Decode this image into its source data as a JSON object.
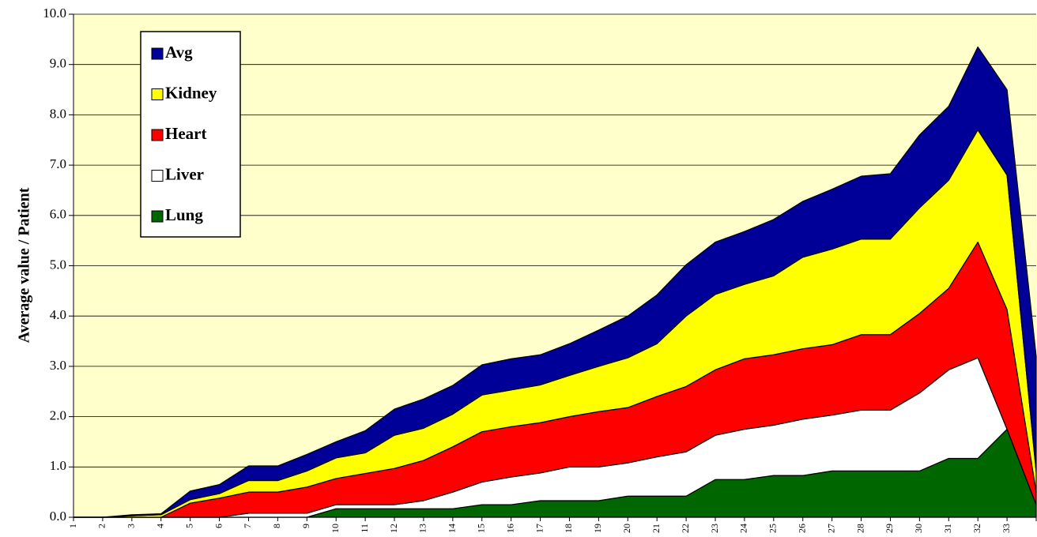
{
  "chart_data": {
    "type": "stacked-area",
    "y_label": "Average value / Patient",
    "categories": [
      "1",
      "2",
      "3",
      "4",
      "5",
      "6",
      "7",
      "8",
      "9",
      "10",
      "11",
      "12",
      "13",
      "14",
      "15",
      "16",
      "17",
      "18",
      "19",
      "20",
      "21",
      "22",
      "23",
      "24",
      "25",
      "26",
      "27",
      "28",
      "29",
      "30",
      "31",
      "32",
      "33",
      null
    ],
    "series": [
      {
        "name": "Lung",
        "color": "#006600",
        "values": [
          0,
          0,
          0,
          0,
          0,
          0,
          0,
          0,
          0,
          0.17,
          0.17,
          0.17,
          0.17,
          0.17,
          0.25,
          0.25,
          0.33,
          0.33,
          0.33,
          0.42,
          0.42,
          0.42,
          0.75,
          0.75,
          0.83,
          0.83,
          0.92,
          0.92,
          0.92,
          0.92,
          1.17,
          1.17,
          1.75,
          0.25
        ]
      },
      {
        "name": "Liver",
        "color": "#ffffff",
        "values": [
          0,
          0,
          0,
          0,
          0,
          0,
          0.08,
          0.08,
          0.08,
          0.08,
          0.08,
          0.08,
          0.16,
          0.33,
          0.45,
          0.55,
          0.55,
          0.67,
          0.67,
          0.66,
          0.78,
          0.88,
          0.88,
          1.0,
          1.0,
          1.12,
          1.11,
          1.21,
          1.21,
          1.55,
          1.76,
          2.0,
          0,
          0
        ]
      },
      {
        "name": "Heart",
        "color": "#ff0000",
        "values": [
          0,
          0,
          0,
          0,
          0.28,
          0.38,
          0.42,
          0.42,
          0.52,
          0.52,
          0.62,
          0.72,
          0.8,
          0.9,
          1.0,
          1.0,
          1.0,
          1.0,
          1.1,
          1.1,
          1.2,
          1.3,
          1.3,
          1.4,
          1.4,
          1.4,
          1.4,
          1.5,
          1.5,
          1.58,
          1.62,
          2.3,
          2.38,
          0.25
        ]
      },
      {
        "name": "Kidney",
        "color": "#ffff00",
        "values": [
          0,
          0,
          0.03,
          0.05,
          0.07,
          0.09,
          0.23,
          0.23,
          0.32,
          0.41,
          0.41,
          0.66,
          0.64,
          0.65,
          0.73,
          0.73,
          0.75,
          0.82,
          0.9,
          0.99,
          1.05,
          1.4,
          1.5,
          1.48,
          1.57,
          1.82,
          1.9,
          1.9,
          1.9,
          2.1,
          2.15,
          2.23,
          2.67,
          0.4
        ]
      },
      {
        "name": "Avg",
        "color": "#000099",
        "values": [
          0,
          0,
          0.02,
          0.02,
          0.17,
          0.18,
          0.29,
          0.29,
          0.33,
          0.32,
          0.44,
          0.52,
          0.58,
          0.57,
          0.6,
          0.62,
          0.6,
          0.63,
          0.72,
          0.83,
          0.97,
          1.02,
          1.04,
          1.05,
          1.12,
          1.11,
          1.19,
          1.25,
          1.3,
          1.45,
          1.47,
          1.65,
          1.7,
          2.3
        ]
      }
    ],
    "ylim": [
      0,
      10
    ],
    "yticks": [
      {
        "value": 0,
        "label": "0.0"
      },
      {
        "value": 1,
        "label": "1.0"
      },
      {
        "value": 2,
        "label": "2.0"
      },
      {
        "value": 3,
        "label": "3.0"
      },
      {
        "value": 4,
        "label": "4.0"
      },
      {
        "value": 5,
        "label": "5.0"
      },
      {
        "value": 6,
        "label": "6.0"
      },
      {
        "value": 7,
        "label": "7.0"
      },
      {
        "value": 8,
        "label": "8.0"
      },
      {
        "value": 9,
        "label": "9.0"
      },
      {
        "value": 10,
        "label": "10.0"
      }
    ],
    "grid": true,
    "legend": "upper left"
  }
}
